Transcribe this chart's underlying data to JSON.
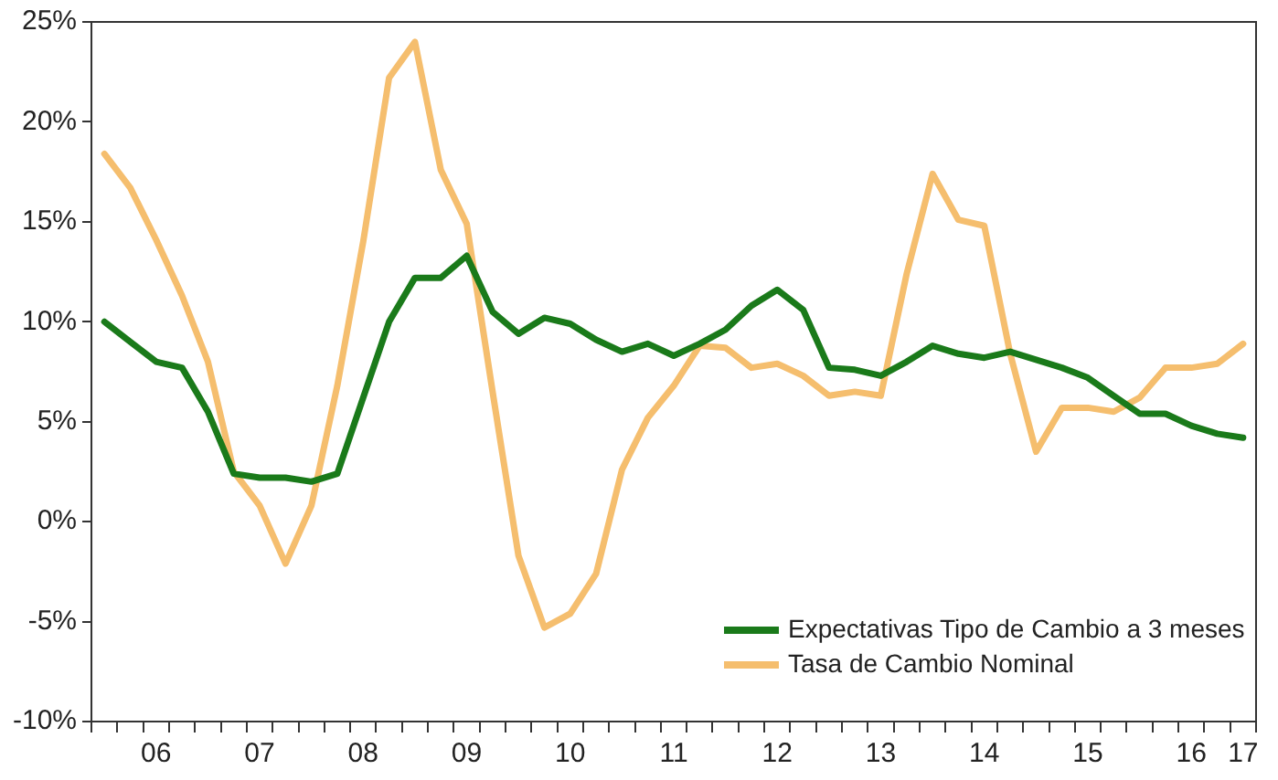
{
  "chart_data": {
    "type": "line",
    "categories": [
      null,
      null,
      "06",
      null,
      null,
      null,
      "07",
      null,
      null,
      null,
      "08",
      null,
      null,
      null,
      "09",
      null,
      null,
      null,
      "10",
      null,
      null,
      null,
      "11",
      null,
      null,
      null,
      "12",
      null,
      null,
      null,
      "13",
      null,
      null,
      null,
      "14",
      null,
      null,
      null,
      "15",
      null,
      null,
      null,
      "16",
      null,
      "17"
    ],
    "series": [
      {
        "name": "Expectativas Tipo de Cambio a 3 meses",
        "color": "#1a7a1a",
        "values": [
          10.0,
          9.0,
          8.0,
          7.7,
          5.5,
          2.4,
          2.2,
          2.2,
          2.0,
          2.4,
          6.2,
          10.0,
          12.2,
          12.2,
          13.3,
          10.5,
          9.4,
          10.2,
          9.9,
          9.1,
          8.5,
          8.9,
          8.3,
          8.9,
          9.6,
          10.8,
          11.6,
          10.6,
          7.7,
          7.6,
          7.3,
          8.0,
          8.8,
          8.4,
          8.2,
          8.5,
          8.1,
          7.7,
          7.2,
          6.3,
          5.4,
          5.4,
          4.8,
          4.4,
          4.2
        ]
      },
      {
        "name": "Tasa de Cambio Nominal",
        "color": "#f5be6e",
        "values": [
          18.4,
          16.7,
          14.1,
          11.3,
          8.0,
          2.5,
          0.8,
          -2.1,
          0.8,
          6.8,
          14.0,
          22.2,
          24.0,
          17.6,
          14.9,
          6.5,
          -1.7,
          -5.3,
          -4.6,
          -2.6,
          2.6,
          5.2,
          6.8,
          8.8,
          8.7,
          7.7,
          7.9,
          7.3,
          6.3,
          6.5,
          6.3,
          12.4,
          17.4,
          15.1,
          14.8,
          8.4,
          3.5,
          5.7,
          5.7,
          5.5,
          6.2,
          7.7,
          7.7,
          7.9,
          8.9
        ]
      }
    ],
    "ylim": [
      -10,
      25
    ],
    "yticks": [
      {
        "value": -10,
        "label": "-10%"
      },
      {
        "value": -5,
        "label": "-5%"
      },
      {
        "value": 0,
        "label": "0%"
      },
      {
        "value": 5,
        "label": "5%"
      },
      {
        "value": 10,
        "label": "10%"
      },
      {
        "value": 15,
        "label": "15%"
      },
      {
        "value": 20,
        "label": "20%"
      },
      {
        "value": 25,
        "label": "25%"
      }
    ],
    "grid": false,
    "legend": "bottom right",
    "marker": "none",
    "line_style": "solid"
  }
}
